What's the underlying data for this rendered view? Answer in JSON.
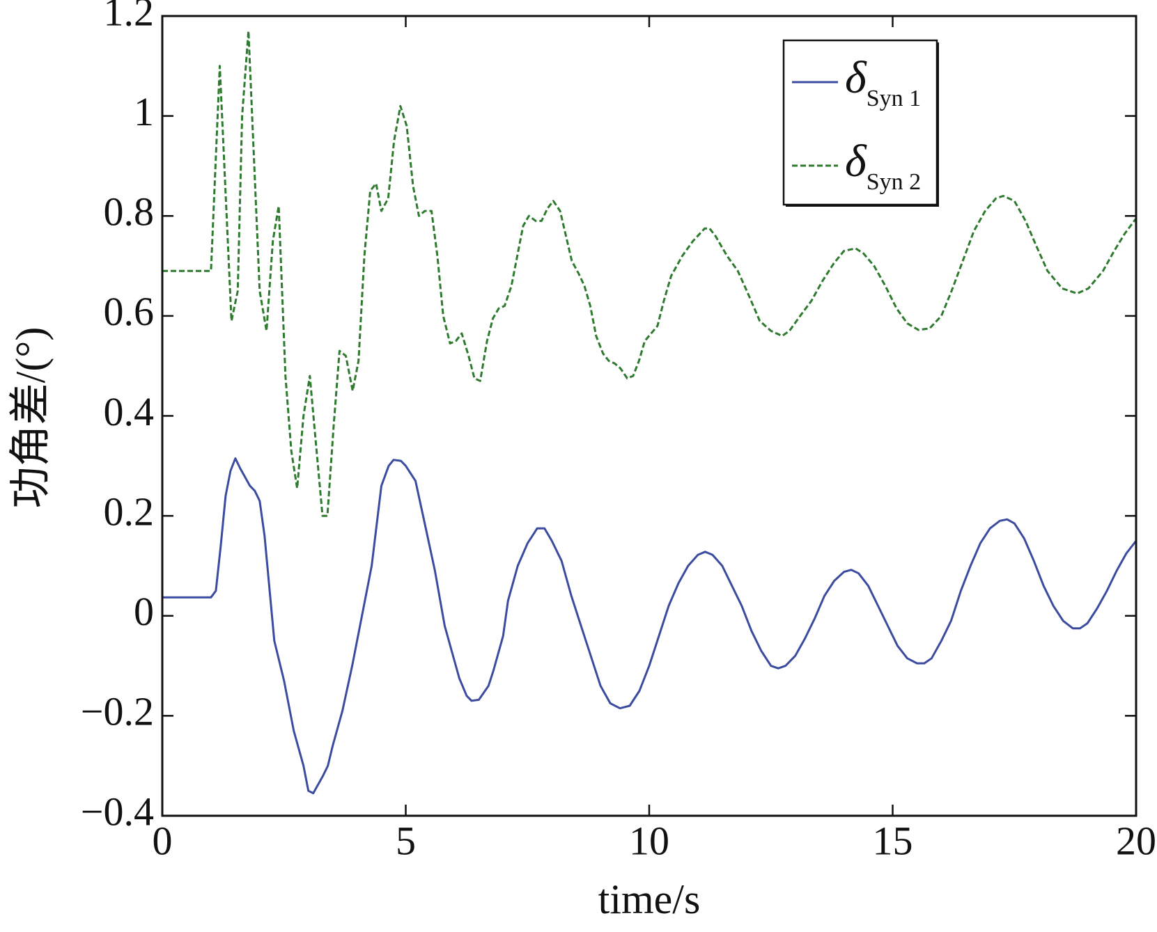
{
  "chart_data": {
    "type": "line",
    "xlabel": "time/s",
    "ylabel": "功角差/(°)",
    "xlim": [
      0,
      20
    ],
    "xticks": [
      0,
      5,
      10,
      15,
      20
    ],
    "ylim": [
      -0.4,
      1.2
    ],
    "yticks": [
      {
        "value": -0.4,
        "label": "−0.4"
      },
      {
        "value": -0.2,
        "label": "−0.2"
      },
      0,
      0.2,
      0.4,
      0.6,
      0.8,
      1,
      1.2
    ],
    "grid": false,
    "legend": "upper right",
    "series": [
      {
        "name": "δSyn 1",
        "color": "#3a4ba0",
        "dash": false,
        "x": [
          0,
          1,
          1.1,
          1.2,
          1.3,
          1.4,
          1.5,
          1.6,
          1.8,
          1.9,
          2.0,
          2.1,
          2.3,
          2.5,
          2.7,
          2.9,
          3.0,
          3.1,
          3.3,
          3.4,
          3.5,
          3.7,
          3.9,
          4.1,
          4.3,
          4.5,
          4.65,
          4.75,
          4.9,
          5.0,
          5.2,
          5.4,
          5.6,
          5.8,
          6.0,
          6.1,
          6.25,
          6.35,
          6.5,
          6.7,
          6.8,
          7.0,
          7.1,
          7.3,
          7.5,
          7.7,
          7.85,
          8.0,
          8.2,
          8.4,
          8.6,
          8.8,
          9.0,
          9.2,
          9.4,
          9.6,
          9.8,
          10.0,
          10.2,
          10.4,
          10.6,
          10.8,
          11.0,
          11.15,
          11.3,
          11.5,
          11.7,
          11.9,
          12.1,
          12.3,
          12.5,
          12.65,
          12.8,
          13.0,
          13.2,
          13.4,
          13.6,
          13.8,
          14.0,
          14.15,
          14.3,
          14.5,
          14.7,
          14.9,
          15.1,
          15.3,
          15.5,
          15.65,
          15.8,
          16.0,
          16.2,
          16.4,
          16.6,
          16.8,
          17.0,
          17.2,
          17.35,
          17.5,
          17.7,
          17.9,
          18.1,
          18.3,
          18.5,
          18.7,
          18.85,
          19.0,
          19.2,
          19.4,
          19.6,
          19.8,
          20
        ],
        "values": [
          0.037,
          0.037,
          0.05,
          0.14,
          0.24,
          0.29,
          0.315,
          0.295,
          0.26,
          0.25,
          0.23,
          0.16,
          -0.05,
          -0.13,
          -0.23,
          -0.3,
          -0.35,
          -0.355,
          -0.32,
          -0.3,
          -0.26,
          -0.19,
          -0.1,
          0.0,
          0.1,
          0.26,
          0.3,
          0.312,
          0.31,
          0.3,
          0.27,
          0.18,
          0.09,
          -0.02,
          -0.09,
          -0.125,
          -0.16,
          -0.17,
          -0.168,
          -0.14,
          -0.11,
          -0.04,
          0.03,
          0.1,
          0.145,
          0.175,
          0.175,
          0.15,
          0.11,
          0.04,
          -0.02,
          -0.08,
          -0.14,
          -0.175,
          -0.185,
          -0.18,
          -0.15,
          -0.1,
          -0.04,
          0.02,
          0.065,
          0.1,
          0.122,
          0.128,
          0.122,
          0.1,
          0.06,
          0.02,
          -0.03,
          -0.07,
          -0.1,
          -0.105,
          -0.1,
          -0.08,
          -0.045,
          -0.005,
          0.04,
          0.07,
          0.088,
          0.092,
          0.085,
          0.06,
          0.02,
          -0.02,
          -0.06,
          -0.085,
          -0.095,
          -0.095,
          -0.085,
          -0.05,
          -0.01,
          0.05,
          0.1,
          0.145,
          0.175,
          0.19,
          0.193,
          0.185,
          0.155,
          0.11,
          0.06,
          0.02,
          -0.01,
          -0.025,
          -0.025,
          -0.015,
          0.015,
          0.05,
          0.09,
          0.125,
          0.15
        ]
      },
      {
        "name": "δSyn 2",
        "color": "#2e7a2e",
        "dash": true,
        "x": [
          0,
          1,
          1.18,
          1.42,
          1.55,
          1.64,
          1.77,
          2.0,
          2.14,
          2.27,
          2.39,
          2.53,
          2.65,
          2.77,
          2.9,
          3.03,
          3.15,
          3.29,
          3.39,
          3.52,
          3.64,
          3.77,
          3.91,
          4.03,
          4.15,
          4.27,
          4.39,
          4.5,
          4.64,
          4.76,
          4.89,
          5.02,
          5.15,
          5.27,
          5.39,
          5.53,
          5.65,
          5.77,
          5.91,
          6.03,
          6.15,
          6.29,
          6.41,
          6.53,
          6.67,
          6.79,
          6.91,
          7.03,
          7.17,
          7.29,
          7.41,
          7.53,
          7.67,
          7.79,
          7.91,
          8.03,
          8.17,
          8.29,
          8.41,
          8.55,
          8.67,
          8.79,
          8.91,
          9.05,
          9.17,
          9.29,
          9.41,
          9.55,
          9.67,
          9.79,
          9.91,
          10.17,
          10.3,
          10.45,
          10.68,
          10.9,
          11.14,
          11.24,
          11.36,
          11.6,
          11.82,
          12.05,
          12.27,
          12.5,
          12.73,
          12.88,
          13.1,
          13.33,
          13.56,
          13.79,
          14.0,
          14.24,
          14.4,
          14.62,
          14.85,
          15.08,
          15.3,
          15.53,
          15.76,
          16.0,
          16.21,
          16.44,
          16.67,
          16.9,
          17.12,
          17.27,
          17.5,
          17.73,
          17.95,
          18.18,
          18.48,
          18.79,
          19.02,
          19.32,
          19.55,
          19.77,
          20
        ],
        "values": [
          0.69,
          0.69,
          1.1,
          0.59,
          0.65,
          1.0,
          1.17,
          0.65,
          0.57,
          0.75,
          0.82,
          0.48,
          0.33,
          0.255,
          0.4,
          0.48,
          0.35,
          0.2,
          0.2,
          0.38,
          0.53,
          0.52,
          0.45,
          0.51,
          0.72,
          0.85,
          0.865,
          0.81,
          0.835,
          0.95,
          1.02,
          0.98,
          0.86,
          0.8,
          0.81,
          0.81,
          0.72,
          0.6,
          0.545,
          0.55,
          0.565,
          0.52,
          0.475,
          0.47,
          0.55,
          0.595,
          0.615,
          0.62,
          0.66,
          0.72,
          0.78,
          0.8,
          0.79,
          0.79,
          0.815,
          0.83,
          0.81,
          0.76,
          0.71,
          0.685,
          0.66,
          0.62,
          0.56,
          0.525,
          0.51,
          0.505,
          0.495,
          0.475,
          0.48,
          0.51,
          0.55,
          0.58,
          0.63,
          0.68,
          0.72,
          0.75,
          0.775,
          0.775,
          0.76,
          0.72,
          0.69,
          0.64,
          0.59,
          0.57,
          0.56,
          0.57,
          0.6,
          0.63,
          0.67,
          0.705,
          0.73,
          0.735,
          0.725,
          0.7,
          0.66,
          0.615,
          0.585,
          0.572,
          0.575,
          0.6,
          0.65,
          0.71,
          0.77,
          0.81,
          0.835,
          0.84,
          0.83,
          0.79,
          0.74,
          0.69,
          0.655,
          0.645,
          0.655,
          0.69,
          0.73,
          0.765,
          0.795
        ]
      }
    ]
  }
}
